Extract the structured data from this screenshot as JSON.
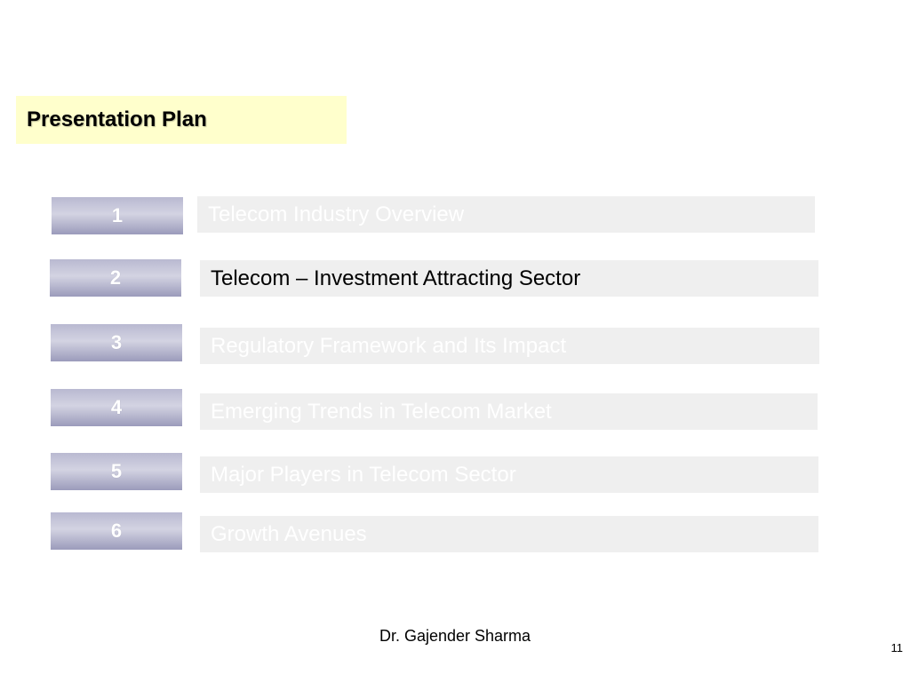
{
  "slide": {
    "title": "Presentation Plan",
    "items": [
      {
        "number": "1",
        "label": "Telecom Industry Overview",
        "active": false
      },
      {
        "number": "2",
        "label": "Telecom – Investment Attracting Sector",
        "active": true
      },
      {
        "number": "3",
        "label": "Regulatory Framework and Its Impact",
        "active": false
      },
      {
        "number": "4",
        "label": "Emerging Trends in Telecom Market",
        "active": false
      },
      {
        "number": "5",
        "label": "Major Players in Telecom Sector",
        "active": false
      },
      {
        "number": "6",
        "label": "Growth Avenues",
        "active": false
      }
    ],
    "footer": {
      "author": "Dr. Gajender Sharma",
      "page_number": "11"
    },
    "colors": {
      "title_background": "#ffffcc",
      "item_background": "#efefef",
      "number_box": "#b9b9d1",
      "active_text": "#000000",
      "inactive_text": "#ffffff"
    }
  }
}
